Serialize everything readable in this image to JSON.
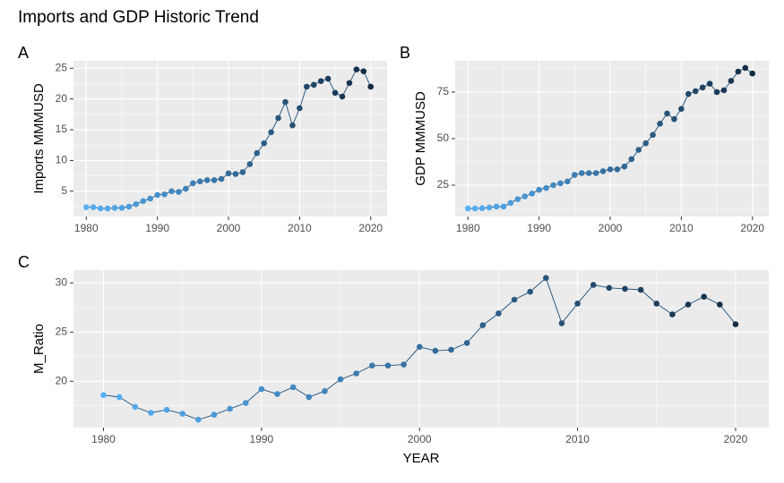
{
  "title": "Imports and GDP Historic Trend",
  "chart_data": [
    {
      "type": "line",
      "tag": "A",
      "ylabel": "Imports MMMUSD",
      "x": [
        1980,
        1981,
        1982,
        1983,
        1984,
        1985,
        1986,
        1987,
        1988,
        1989,
        1990,
        1991,
        1992,
        1993,
        1994,
        1995,
        1996,
        1997,
        1998,
        1999,
        2000,
        2001,
        2002,
        2003,
        2004,
        2005,
        2006,
        2007,
        2008,
        2009,
        2010,
        2011,
        2012,
        2013,
        2014,
        2015,
        2016,
        2017,
        2018,
        2019,
        2020
      ],
      "values": [
        2.4,
        2.4,
        2.2,
        2.2,
        2.3,
        2.3,
        2.5,
        2.9,
        3.4,
        3.8,
        4.4,
        4.5,
        5.0,
        4.9,
        5.4,
        6.3,
        6.6,
        6.8,
        6.8,
        7.0,
        7.9,
        7.8,
        8.1,
        9.4,
        11.2,
        12.8,
        14.6,
        16.9,
        19.5,
        15.7,
        18.5,
        22.0,
        22.3,
        22.9,
        23.3,
        21.0,
        20.4,
        22.6,
        24.8,
        24.5,
        22.0
      ],
      "xlim": [
        1978.2,
        2022.3
      ],
      "xticks": [
        1980,
        1990,
        2000,
        2010,
        2020
      ],
      "ylim": [
        0.9,
        26.2
      ],
      "yticks": [
        5,
        10,
        15,
        20,
        25
      ],
      "grid": true,
      "color_low": "#56B1F7",
      "color_high": "#132B43",
      "line_color": "#1d4f7a"
    },
    {
      "type": "line",
      "tag": "B",
      "ylabel": "GDP MMMUSD",
      "x": [
        1980,
        1981,
        1982,
        1983,
        1984,
        1985,
        1986,
        1987,
        1988,
        1989,
        1990,
        1991,
        1992,
        1993,
        1994,
        1995,
        1996,
        1997,
        1998,
        1999,
        2000,
        2001,
        2002,
        2003,
        2004,
        2005,
        2006,
        2007,
        2008,
        2009,
        2010,
        2011,
        2012,
        2013,
        2014,
        2015,
        2016,
        2017,
        2018,
        2019,
        2020
      ],
      "values": [
        12.5,
        12.5,
        12.6,
        13.0,
        13.5,
        13.5,
        15.5,
        17.5,
        19.0,
        20.5,
        22.5,
        23.5,
        25.0,
        26.0,
        27.0,
        30.5,
        31.5,
        31.5,
        31.5,
        32.5,
        33.5,
        33.5,
        35.0,
        39.0,
        44.0,
        47.5,
        52.0,
        58.0,
        63.5,
        60.5,
        66.0,
        74.0,
        75.5,
        77.5,
        79.5,
        75.0,
        76.0,
        81.0,
        86.0,
        88.0,
        85.0
      ],
      "xlim": [
        1978.2,
        2022.3
      ],
      "xticks": [
        1980,
        1990,
        2000,
        2010,
        2020
      ],
      "ylim": [
        8.2,
        91.8
      ],
      "yticks": [
        25,
        50,
        75
      ],
      "grid": true,
      "color_low": "#56B1F7",
      "color_high": "#132B43",
      "line_color": "#1d4f7a"
    },
    {
      "type": "line",
      "tag": "C",
      "xlabel": "YEAR",
      "ylabel": "M_Ratio",
      "x": [
        1980,
        1981,
        1982,
        1983,
        1984,
        1985,
        1986,
        1987,
        1988,
        1989,
        1990,
        1991,
        1992,
        1993,
        1994,
        1995,
        1996,
        1997,
        1998,
        1999,
        2000,
        2001,
        2002,
        2003,
        2004,
        2005,
        2006,
        2007,
        2008,
        2009,
        2010,
        2011,
        2012,
        2013,
        2014,
        2015,
        2016,
        2017,
        2018,
        2019,
        2020
      ],
      "values": [
        18.6,
        18.4,
        17.4,
        16.8,
        17.1,
        16.7,
        16.1,
        16.6,
        17.2,
        17.8,
        19.2,
        18.7,
        19.4,
        18.4,
        19.0,
        20.2,
        20.8,
        21.6,
        21.6,
        21.7,
        23.5,
        23.1,
        23.2,
        23.9,
        25.7,
        26.9,
        28.3,
        29.1,
        30.5,
        25.9,
        27.9,
        29.8,
        29.5,
        29.4,
        29.3,
        27.9,
        26.8,
        27.8,
        28.6,
        27.8,
        25.8
      ],
      "xlim": [
        1978.1,
        2022.1
      ],
      "xticks": [
        1980,
        1990,
        2000,
        2010,
        2020
      ],
      "ylim": [
        15.3,
        31.3
      ],
      "yticks": [
        20,
        25,
        30
      ],
      "grid": true,
      "color_low": "#56B1F7",
      "color_high": "#132B43",
      "line_color": "#1d4f7a"
    }
  ]
}
